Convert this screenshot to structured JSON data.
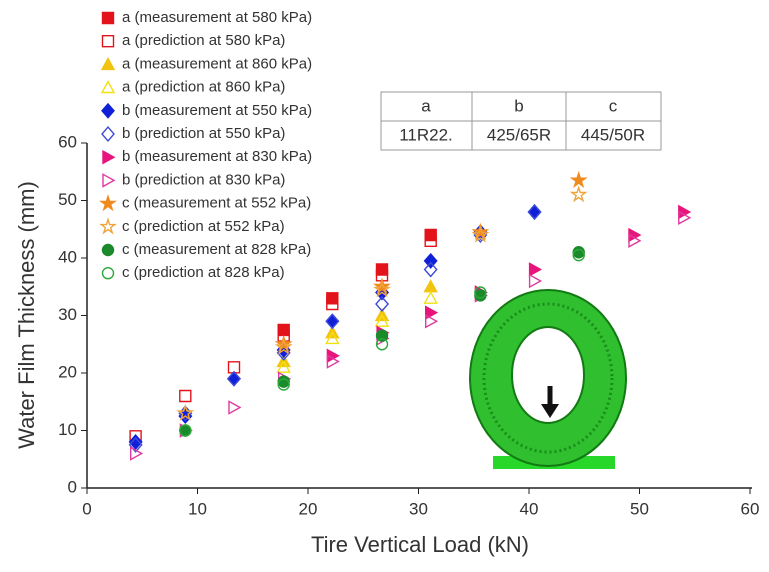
{
  "chart_data": {
    "type": "scatter",
    "x_label": "Tire Vertical Load (kN)",
    "y_label": "Water Film Thickness (mm)",
    "xlim": [
      0,
      60
    ],
    "xticks": [
      0,
      10,
      20,
      30,
      40,
      50,
      60
    ],
    "ylim": [
      0,
      60
    ],
    "yticks": [
      0,
      10,
      20,
      30,
      40,
      50,
      60
    ],
    "legend": "upper-left",
    "series": [
      {
        "name": "a (measurement at 580 kPa)",
        "color": "#e3131b",
        "marker": "square",
        "filled": true,
        "x": [
          17.8,
          22.2,
          26.7,
          31.1
        ],
        "values": [
          27.5,
          33,
          38,
          44
        ]
      },
      {
        "name": "a (prediction at 580 kPa)",
        "color": "#e3131b",
        "marker": "square",
        "filled": false,
        "x": [
          4.4,
          8.9,
          13.3,
          17.8,
          22.2,
          26.7,
          31.1
        ],
        "values": [
          9,
          16,
          21,
          26.5,
          32,
          37,
          43
        ]
      },
      {
        "name": "a (measurement at 860 kPa)",
        "color": "#f2c40f",
        "marker": "triangle",
        "filled": true,
        "x": [
          17.8,
          22.2,
          26.7,
          31.1
        ],
        "values": [
          22,
          27,
          30,
          35
        ]
      },
      {
        "name": "a (prediction at 860 kPa)",
        "color": "#f2e10f",
        "marker": "triangle",
        "filled": false,
        "x": [
          17.8,
          22.2,
          26.7,
          31.1
        ],
        "values": [
          21,
          26,
          29,
          33
        ]
      },
      {
        "name": "b (measurement at 550 kPa)",
        "color": "#1020d8",
        "marker": "diamond",
        "filled": true,
        "x": [
          4.4,
          8.9,
          13.3,
          17.8,
          22.2,
          26.7,
          31.1,
          35.6,
          40.5
        ],
        "values": [
          8,
          12.5,
          19,
          24,
          29,
          34,
          39.5,
          44.5,
          48
        ]
      },
      {
        "name": "b (prediction at 550 kPa)",
        "color": "#3d4bd8",
        "marker": "diamond",
        "filled": false,
        "x": [
          4.4,
          8.9,
          13.3,
          17.8,
          22.2,
          26.7,
          31.1,
          35.6,
          40.5
        ],
        "values": [
          7.5,
          13,
          19,
          23.5,
          29,
          32,
          38,
          44,
          48
        ]
      },
      {
        "name": "b (measurement at 830 kPa)",
        "color": "#e8157c",
        "marker": "triangle-right",
        "filled": true,
        "x": [
          22.2,
          26.7,
          31.1,
          35.6,
          40.5,
          49.5,
          54
        ],
        "values": [
          23,
          27,
          30.5,
          34,
          38,
          44,
          48
        ]
      },
      {
        "name": "b (prediction at 830 kPa)",
        "color": "#e03aa0",
        "marker": "triangle-right",
        "filled": false,
        "x": [
          4.4,
          8.9,
          13.3,
          17.8,
          22.2,
          26.7,
          31.1,
          35.6,
          40.5,
          49.5,
          54
        ],
        "values": [
          6,
          10,
          14,
          19,
          22,
          26,
          29,
          33.5,
          36,
          43,
          47
        ]
      },
      {
        "name": "c (measurement at 552 kPa)",
        "color": "#f08a1c",
        "marker": "star",
        "filled": true,
        "x": [
          17.8,
          26.7,
          35.6,
          44.5
        ],
        "values": [
          25,
          35,
          44.5,
          53.5
        ]
      },
      {
        "name": "c (prediction at 552 kPa)",
        "color": "#f0a43c",
        "marker": "star",
        "filled": false,
        "x": [
          8.9,
          17.8,
          26.7,
          35.6,
          44.5
        ],
        "values": [
          13,
          24.5,
          34.5,
          44,
          51
        ]
      },
      {
        "name": "c (measurement at 828 kPa)",
        "color": "#1a8a2a",
        "marker": "circle",
        "filled": true,
        "x": [
          8.9,
          17.8,
          26.7,
          35.6,
          44.5
        ],
        "values": [
          10,
          18.5,
          26.5,
          33.5,
          41
        ]
      },
      {
        "name": "c (prediction at 828 kPa)",
        "color": "#2aa83a",
        "marker": "circle",
        "filled": false,
        "x": [
          8.9,
          17.8,
          26.7,
          35.6,
          44.5
        ],
        "values": [
          10,
          18,
          25,
          34,
          40.5
        ]
      }
    ],
    "table": {
      "header": [
        "a",
        "b",
        "c"
      ],
      "rows": [
        [
          "11R22.",
          "425/65R",
          "445/50R"
        ]
      ]
    }
  }
}
